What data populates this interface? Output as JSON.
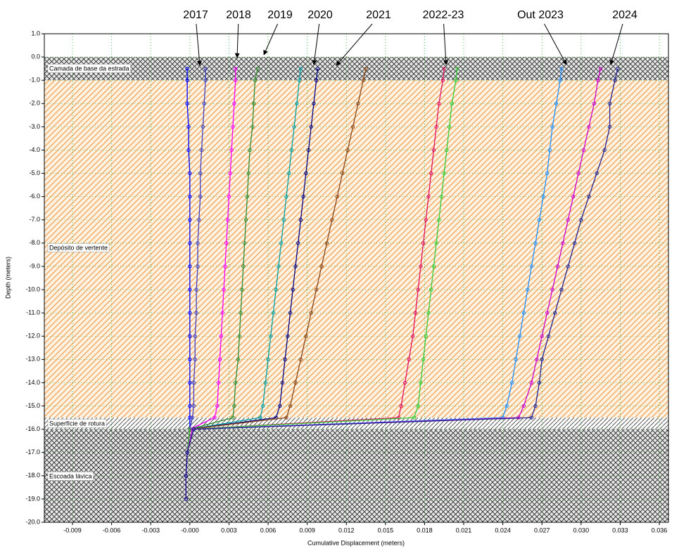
{
  "chart_data": {
    "type": "line",
    "x_label": "Cumulative Displacement (meters)",
    "y_label": "Depth (meters)",
    "xlim": [
      -0.01116,
      0.0367
    ],
    "ylim": [
      -20,
      1
    ],
    "xticks": [
      -0.009,
      -0.006,
      -0.003,
      {
        "value": 0,
        "label": "-0.000"
      },
      0.003,
      0.006,
      0.009,
      0.012,
      0.015,
      0.018,
      0.021,
      0.024,
      0.027,
      {
        "value": 0.03,
        "label": "0.030"
      },
      0.033,
      0.036
    ],
    "yticks": [
      {
        "value": 1,
        "label": "1.0"
      },
      {
        "value": 0,
        "label": "0.0"
      },
      {
        "value": -1,
        "label": "-1.0"
      },
      {
        "value": -2,
        "label": "-2.0"
      },
      {
        "value": -3,
        "label": "-3.0"
      },
      {
        "value": -4,
        "label": "-4.0"
      },
      {
        "value": -5,
        "label": "-5.0"
      },
      {
        "value": -6,
        "label": "-6.0"
      },
      {
        "value": -7,
        "label": "-7.0"
      },
      {
        "value": -8,
        "label": "-8.0"
      },
      {
        "value": -9,
        "label": "-9.0"
      },
      {
        "value": -10,
        "label": "-10.0"
      },
      {
        "value": -11,
        "label": "-11.0"
      },
      {
        "value": -12,
        "label": "-12.0"
      },
      {
        "value": -13,
        "label": "-13.0"
      },
      {
        "value": -14,
        "label": "-14.0"
      },
      {
        "value": -15,
        "label": "-15.0"
      },
      {
        "value": -16,
        "label": "-16.0"
      },
      {
        "value": -17,
        "label": "-17.0"
      },
      {
        "value": -18,
        "label": "-18.0"
      },
      {
        "value": -19,
        "label": "-19.0"
      },
      {
        "value": -20,
        "label": "-20.0"
      }
    ],
    "grid": true,
    "layers": [
      {
        "label": "Camada de base da estrada",
        "top": 0,
        "bottom": -1
      },
      {
        "label": "Depósito de vertente",
        "top": -1,
        "bottom": -15.5
      },
      {
        "label": "Superfície de rotura",
        "top": -15.5,
        "bottom": -16
      },
      {
        "label": "Escoada lávica",
        "top": -16,
        "bottom": -20
      }
    ],
    "annotations": [
      "2017",
      "2018",
      "2019",
      "2020",
      "2021",
      "2022-23",
      "Out 2023",
      "2024"
    ],
    "y": [
      -0.5,
      -1,
      -2,
      -3,
      -4,
      -5,
      -6,
      -7,
      -8,
      -9,
      -10,
      -11,
      -12,
      -13,
      -14,
      -15,
      -15.5,
      -16,
      -17,
      -18,
      -19
    ],
    "series": [
      {
        "color": "#0000ff",
        "values": [
          -0.0002,
          -0.0002,
          -0.0002,
          -0.0001,
          -0.0001,
          0,
          0,
          0,
          0,
          0,
          0,
          0,
          0,
          0,
          0,
          0,
          0,
          0,
          -0.0002,
          -0.0003,
          -0.0003
        ]
      },
      {
        "color": "#4040c0",
        "values": [
          0.0012,
          0.0012,
          0.0011,
          0.001,
          0.0009,
          0.0008,
          0.0008,
          0.0007,
          0.0006,
          0.0006,
          0.0005,
          0.0005,
          0.0004,
          0.0004,
          0.0003,
          0.0003,
          0.0002,
          0,
          -0.0002,
          -0.0003,
          -0.0003
        ]
      },
      {
        "color": "#ff00ff",
        "values": [
          0.0035,
          0.0035,
          0.0034,
          0.0033,
          0.0032,
          0.0031,
          0.003,
          0.0029,
          0.0028,
          0.0027,
          0.0026,
          0.0025,
          0.0024,
          0.0023,
          0.0022,
          0.0021,
          0.0019,
          0,
          -0.0002,
          -0.0003,
          -0.0003
        ]
      },
      {
        "color": "#2e8b2e",
        "values": [
          0.0052,
          0.005,
          0.0049,
          0.0048,
          0.0046,
          0.0045,
          0.0044,
          0.0043,
          0.0042,
          0.0041,
          0.004,
          0.0039,
          0.0038,
          0.0037,
          0.0035,
          0.0034,
          0.0033,
          0,
          -0.0002,
          -0.0003,
          -0.0003
        ]
      },
      {
        "color": "#00a0a0",
        "values": [
          0.0085,
          0.0084,
          0.0082,
          0.008,
          0.0078,
          0.0076,
          0.0074,
          0.0072,
          0.007,
          0.0068,
          0.0066,
          0.0064,
          0.0062,
          0.006,
          0.0058,
          0.0056,
          0.0054,
          0,
          -0.0002,
          -0.0003,
          -0.0003
        ]
      },
      {
        "color": "#000080",
        "values": [
          0.0098,
          0.0097,
          0.0095,
          0.0093,
          0.0091,
          0.0089,
          0.0087,
          0.0085,
          0.0083,
          0.0081,
          0.0079,
          0.0077,
          0.0075,
          0.0073,
          0.0071,
          0.0069,
          0.0066,
          0,
          -0.0002,
          -0.0003,
          -0.0003
        ]
      },
      {
        "color": "#8b4513",
        "values": [
          0.0135,
          0.0133,
          0.0129,
          0.0125,
          0.0121,
          0.0117,
          0.0113,
          0.0109,
          0.0105,
          0.0101,
          0.0097,
          0.0093,
          0.0089,
          0.0085,
          0.0081,
          0.0077,
          0.0074,
          0,
          -0.0002,
          -0.0003,
          -0.0003
        ]
      },
      {
        "color": "#e0115f",
        "values": [
          0.0195,
          0.0194,
          0.0191,
          0.0189,
          0.0187,
          0.0185,
          0.0183,
          0.0181,
          0.0179,
          0.0177,
          0.0175,
          0.0173,
          0.0171,
          0.0168,
          0.0165,
          0.0162,
          0.016,
          0,
          -0.0002,
          -0.0003,
          -0.0003
        ]
      },
      {
        "color": "#33cc33",
        "values": [
          0.0205,
          0.0204,
          0.0201,
          0.0199,
          0.0197,
          0.0195,
          0.0193,
          0.0191,
          0.0189,
          0.0187,
          0.0185,
          0.0183,
          0.0181,
          0.0179,
          0.0177,
          0.0175,
          0.0172,
          0,
          -0.0002,
          -0.0003,
          -0.0003
        ]
      },
      {
        "color": "#1e90ff",
        "values": [
          0.0285,
          0.0284,
          0.0281,
          0.0278,
          0.0276,
          0.0274,
          0.0271,
          0.0268,
          0.0265,
          0.0262,
          0.0259,
          0.0256,
          0.0253,
          0.025,
          0.0247,
          0.0243,
          0.024,
          0.0002,
          -0.0002,
          -0.0003,
          -0.0003
        ]
      },
      {
        "color": "#cc00cc",
        "values": [
          0.0315,
          0.0313,
          0.031,
          0.0306,
          0.0302,
          0.0298,
          0.0294,
          0.029,
          0.0286,
          0.0282,
          0.0278,
          0.0274,
          0.027,
          0.0266,
          0.0262,
          0.0256,
          0.0252,
          0.0002,
          -0.0002,
          -0.0003,
          -0.0003
        ]
      },
      {
        "color": "#202090",
        "values": [
          0.0328,
          0.0326,
          0.0322,
          0.0322,
          0.0318,
          0.0312,
          0.0306,
          0.03,
          0.0295,
          0.029,
          0.0285,
          0.028,
          0.0275,
          0.027,
          0.0268,
          0.0265,
          0.0262,
          0.0003,
          -0.0002,
          -0.0003,
          -0.0003
        ]
      }
    ]
  }
}
